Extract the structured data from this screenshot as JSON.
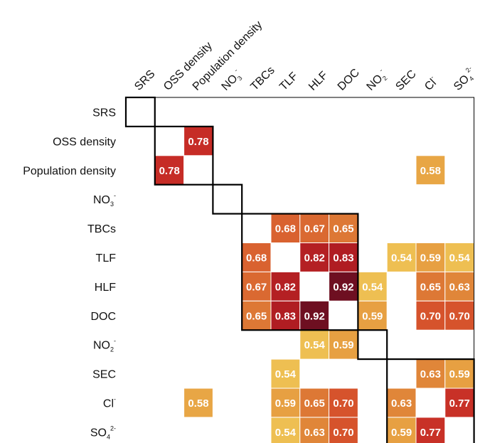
{
  "chart_data": {
    "type": "heatmap",
    "title": "",
    "labels": [
      {
        "base": "SRS",
        "sup": "",
        "sub": ""
      },
      {
        "base": "OSS density",
        "sup": "",
        "sub": ""
      },
      {
        "base": "Population density",
        "sup": "",
        "sub": ""
      },
      {
        "base": "NO",
        "sub": "3",
        "sup": "-"
      },
      {
        "base": "TBCs",
        "sup": "",
        "sub": ""
      },
      {
        "base": "TLF",
        "sup": "",
        "sub": ""
      },
      {
        "base": "HLF",
        "sup": "",
        "sub": ""
      },
      {
        "base": "DOC",
        "sup": "",
        "sub": ""
      },
      {
        "base": "NO",
        "sub": "2",
        "sup": "-"
      },
      {
        "base": "SEC",
        "sup": "",
        "sub": ""
      },
      {
        "base": "Cl",
        "sup": "-",
        "sub": ""
      },
      {
        "base": "SO",
        "sub": "4",
        "sup": "2-"
      }
    ],
    "cells": [
      {
        "row": 1,
        "col": 2,
        "value": 0.78,
        "label": "0.78"
      },
      {
        "row": 2,
        "col": 1,
        "value": 0.78,
        "label": "0.78"
      },
      {
        "row": 2,
        "col": 10,
        "value": 0.58,
        "label": "0.58"
      },
      {
        "row": 4,
        "col": 5,
        "value": 0.68,
        "label": "0.68"
      },
      {
        "row": 4,
        "col": 6,
        "value": 0.67,
        "label": "0.67"
      },
      {
        "row": 4,
        "col": 7,
        "value": 0.65,
        "label": "0.65"
      },
      {
        "row": 5,
        "col": 4,
        "value": 0.68,
        "label": "0.68"
      },
      {
        "row": 5,
        "col": 6,
        "value": 0.82,
        "label": "0.82"
      },
      {
        "row": 5,
        "col": 7,
        "value": 0.83,
        "label": "0.83"
      },
      {
        "row": 5,
        "col": 9,
        "value": 0.54,
        "label": "0.54"
      },
      {
        "row": 5,
        "col": 10,
        "value": 0.59,
        "label": "0.59"
      },
      {
        "row": 5,
        "col": 11,
        "value": 0.54,
        "label": "0.54"
      },
      {
        "row": 6,
        "col": 4,
        "value": 0.67,
        "label": "0.67"
      },
      {
        "row": 6,
        "col": 5,
        "value": 0.82,
        "label": "0.82"
      },
      {
        "row": 6,
        "col": 7,
        "value": 0.92,
        "label": "0.92"
      },
      {
        "row": 6,
        "col": 8,
        "value": 0.54,
        "label": "0.54"
      },
      {
        "row": 6,
        "col": 10,
        "value": 0.65,
        "label": "0.65"
      },
      {
        "row": 6,
        "col": 11,
        "value": 0.63,
        "label": "0.63"
      },
      {
        "row": 7,
        "col": 4,
        "value": 0.65,
        "label": "0.65"
      },
      {
        "row": 7,
        "col": 5,
        "value": 0.83,
        "label": "0.83"
      },
      {
        "row": 7,
        "col": 6,
        "value": 0.92,
        "label": "0.92"
      },
      {
        "row": 7,
        "col": 8,
        "value": 0.59,
        "label": "0.59"
      },
      {
        "row": 7,
        "col": 10,
        "value": 0.7,
        "label": "0.70"
      },
      {
        "row": 7,
        "col": 11,
        "value": 0.7,
        "label": "0.70"
      },
      {
        "row": 8,
        "col": 6,
        "value": 0.54,
        "label": "0.54"
      },
      {
        "row": 8,
        "col": 7,
        "value": 0.59,
        "label": "0.59"
      },
      {
        "row": 9,
        "col": 5,
        "value": 0.54,
        "label": "0.54"
      },
      {
        "row": 9,
        "col": 10,
        "value": 0.63,
        "label": "0.63"
      },
      {
        "row": 9,
        "col": 11,
        "value": 0.59,
        "label": "0.59"
      },
      {
        "row": 10,
        "col": 2,
        "value": 0.58,
        "label": "0.58"
      },
      {
        "row": 10,
        "col": 5,
        "value": 0.59,
        "label": "0.59"
      },
      {
        "row": 10,
        "col": 6,
        "value": 0.65,
        "label": "0.65"
      },
      {
        "row": 10,
        "col": 7,
        "value": 0.7,
        "label": "0.70"
      },
      {
        "row": 10,
        "col": 9,
        "value": 0.63,
        "label": "0.63"
      },
      {
        "row": 10,
        "col": 11,
        "value": 0.77,
        "label": "0.77"
      },
      {
        "row": 11,
        "col": 5,
        "value": 0.54,
        "label": "0.54"
      },
      {
        "row": 11,
        "col": 6,
        "value": 0.63,
        "label": "0.63"
      },
      {
        "row": 11,
        "col": 7,
        "value": 0.7,
        "label": "0.70"
      },
      {
        "row": 11,
        "col": 9,
        "value": 0.59,
        "label": "0.59"
      },
      {
        "row": 11,
        "col": 10,
        "value": 0.77,
        "label": "0.77"
      }
    ],
    "clusters": [
      [
        0,
        0
      ],
      [
        1,
        2
      ],
      [
        3,
        3
      ],
      [
        4,
        7
      ],
      [
        8,
        8
      ],
      [
        9,
        11
      ]
    ],
    "color_scale": [
      {
        "value": 0.54,
        "color": "#eebf52"
      },
      {
        "value": 0.6,
        "color": "#e59a3f"
      },
      {
        "value": 0.65,
        "color": "#dd7835"
      },
      {
        "value": 0.7,
        "color": "#d6532c"
      },
      {
        "value": 0.78,
        "color": "#c62c26"
      },
      {
        "value": 0.83,
        "color": "#b01d22"
      },
      {
        "value": 0.92,
        "color": "#6e0f21"
      }
    ]
  }
}
